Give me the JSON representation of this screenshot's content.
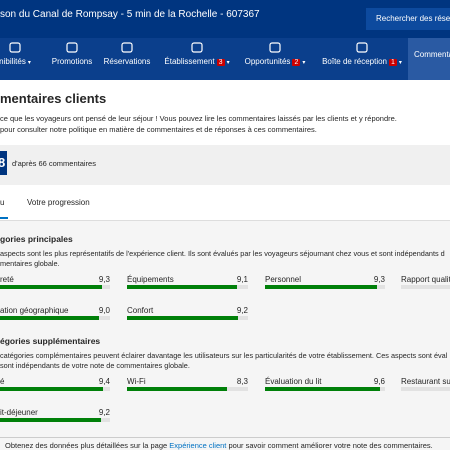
{
  "header": {
    "property": "son du Canal de Rompsay - 5 min de la Rochelle - 607367",
    "search": "Rechercher des réser"
  },
  "nav": [
    {
      "label": "nibilités",
      "dropdown": true
    },
    {
      "label": "Promotions"
    },
    {
      "label": "Réservations"
    },
    {
      "label": "Établissement",
      "badge": 3,
      "dropdown": true
    },
    {
      "label": "Opportunités",
      "badge": 2,
      "dropdown": true
    },
    {
      "label": "Boîte de réception",
      "badge": 1,
      "dropdown": true
    },
    {
      "label": "Commenta",
      "active": true
    }
  ],
  "content": {
    "title": "mentaires clients",
    "intro": [
      "ce que les voyageurs ont pensé de leur séjour ! Vous pouvez lire les commentaires laissés par les clients et y répondre.",
      "pour consulter notre politique en matière de commentaires et de réponses à ces commentaires."
    ],
    "score": "8",
    "count_text": "d'après 66 commentaires",
    "tabs": [
      "u",
      "Votre progression"
    ],
    "score_max": 10,
    "sections": [
      {
        "title": "gories principales",
        "description": [
          "aspects sont les plus représentatifs de l'expérience client. Ils sont évalués par les voyageurs séjournant chez vous et sont indépendants d",
          "mentaires globale."
        ],
        "items": [
          {
            "name": "reté",
            "value": 9.3,
            "label": "9,3"
          },
          {
            "name": "Équipements",
            "value": 9.1,
            "label": "9,1"
          },
          {
            "name": "Personnel",
            "value": 9.3,
            "label": "9,3"
          },
          {
            "name": "Rapport qualité",
            "value": null
          },
          {
            "name": "ation géographique",
            "value": 9.0,
            "label": "9,0"
          },
          {
            "name": "Confort",
            "value": 9.2,
            "label": "9,2"
          }
        ]
      },
      {
        "title": "égories supplémentaires",
        "description": [
          "catégories complémentaires peuvent éclairer davantage les utilisateurs sur les particularités de votre établissement. Ces aspects sont éval",
          "sont indépendants de votre note de commentaires globale."
        ],
        "items": [
          {
            "name": "é",
            "value": 9.4,
            "label": "9,4"
          },
          {
            "name": "Wi-Fi",
            "value": 8.3,
            "label": "8,3"
          },
          {
            "name": "Évaluation du lit",
            "value": 9.6,
            "label": "9,6"
          },
          {
            "name": "Restaurant sur pl",
            "value": null
          },
          {
            "name": "it-déjeuner",
            "value": 9.2,
            "label": "9,2"
          }
        ]
      }
    ],
    "footer": [
      "Obtenez des données plus détaillées sur la page ",
      "Expérience client",
      " pour savoir comment améliorer votre note des commentaires."
    ]
  }
}
